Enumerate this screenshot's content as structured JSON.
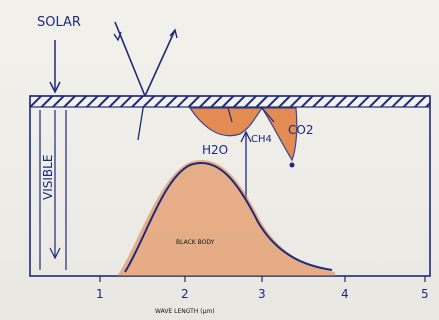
{
  "diagram": {
    "labels": {
      "solar": "SOLAR",
      "visible": "VISIBLE",
      "h2o": "H2O",
      "ch4": "CH4",
      "co2": "CO2",
      "black_body": "BLACK BODY",
      "wavelength_axis": "WAVE LENGTH (µm)"
    },
    "x_ticks": [
      "1",
      "2",
      "3",
      "4",
      "5"
    ],
    "colors": {
      "ink": "#1e2a7a",
      "orange": "#e07a3a",
      "paper": "#f1efe9"
    }
  }
}
